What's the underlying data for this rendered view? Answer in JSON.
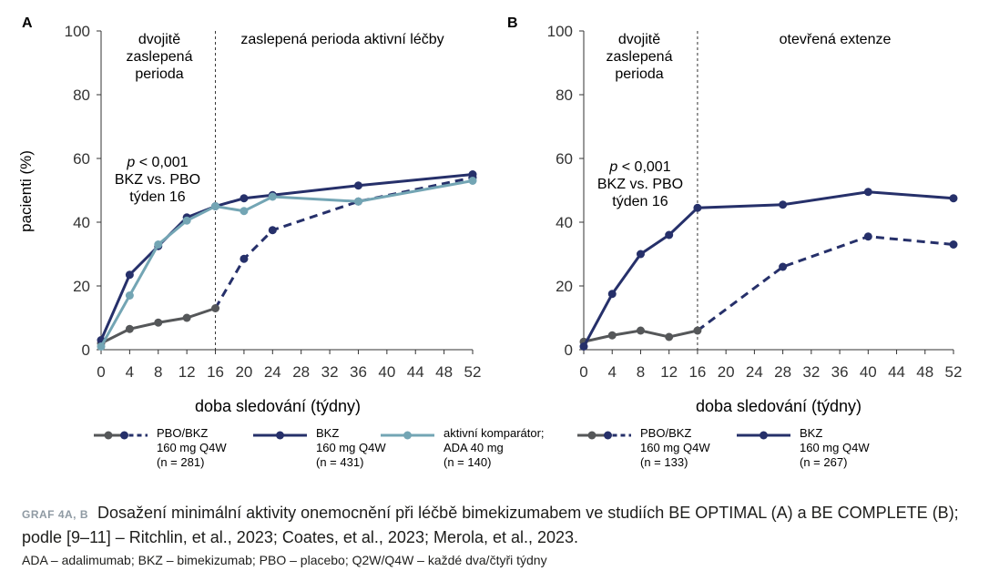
{
  "colors": {
    "bkz": "#26306a",
    "pbo": "#555759",
    "ada": "#73a5b4",
    "axis": "#333333",
    "caption_label": "#8f9aa3"
  },
  "chart_data": [
    {
      "panel": "A",
      "type": "line",
      "xlabel": "doba sledování (týdny)",
      "ylabel": "pacienti (%)",
      "xlim": [
        0,
        52
      ],
      "ylim": [
        0,
        100
      ],
      "xticks": [
        "0",
        "4",
        "8",
        "12",
        "16",
        "20",
        "24",
        "28",
        "32",
        "36",
        "40",
        "44",
        "48",
        "52"
      ],
      "yticks": [
        "0",
        "20",
        "40",
        "60",
        "80",
        "100"
      ],
      "period_divider_x": 16,
      "period_labels": [
        "dvojitě",
        "zaslepená",
        "perioda",
        "zaslepená perioda aktivní léčby"
      ],
      "annotation": {
        "p": "p",
        "pvalue": " < 0,001",
        "line2": "BKZ vs. PBO",
        "line3": "týden 16"
      },
      "series": [
        {
          "name": "PBO/BKZ",
          "color": "#555759",
          "solid": [
            [
              0,
              2
            ],
            [
              4,
              6.5
            ],
            [
              8,
              8.5
            ],
            [
              12,
              10
            ],
            [
              16,
              13
            ]
          ],
          "dashed": [
            [
              16,
              13
            ],
            [
              20,
              28.5
            ],
            [
              24,
              37.5
            ],
            [
              36,
              46.5
            ],
            [
              52,
              54
            ]
          ]
        },
        {
          "name": "BKZ",
          "color": "#26306a",
          "solid": [
            [
              0,
              3
            ],
            [
              4,
              23.5
            ],
            [
              8,
              32.5
            ],
            [
              12,
              41.5
            ],
            [
              16,
              45
            ],
            [
              20,
              47.5
            ],
            [
              24,
              48.5
            ],
            [
              36,
              51.5
            ],
            [
              52,
              55
            ]
          ],
          "dashed": []
        },
        {
          "name": "aktivní komparátor",
          "color": "#73a5b4",
          "solid": [
            [
              0,
              1
            ],
            [
              4,
              17
            ],
            [
              8,
              33
            ],
            [
              12,
              40.5
            ],
            [
              16,
              45
            ],
            [
              20,
              43.5
            ],
            [
              24,
              48
            ],
            [
              36,
              46.5
            ],
            [
              52,
              53
            ]
          ],
          "dashed": []
        }
      ],
      "legend": [
        {
          "kind": "pbo",
          "lines": [
            "PBO/BKZ",
            "160 mg Q4W",
            "(n = 281)"
          ]
        },
        {
          "kind": "bkz",
          "lines": [
            "BKZ",
            "160 mg Q4W",
            "(n = 431)"
          ]
        },
        {
          "kind": "ada",
          "lines": [
            "aktivní komparátor;",
            "ADA 40 mg",
            "(n = 140)"
          ]
        }
      ]
    },
    {
      "panel": "B",
      "type": "line",
      "xlabel": "doba sledování (týdny)",
      "ylabel": "",
      "xlim": [
        0,
        52
      ],
      "ylim": [
        0,
        100
      ],
      "xticks": [
        "0",
        "4",
        "8",
        "12",
        "16",
        "20",
        "24",
        "28",
        "32",
        "36",
        "40",
        "44",
        "48",
        "52"
      ],
      "yticks": [
        "0",
        "20",
        "40",
        "60",
        "80",
        "100"
      ],
      "period_divider_x": 16,
      "period_labels": [
        "dvojitě",
        "zaslepená",
        "perioda",
        "otevřená extenze"
      ],
      "annotation": {
        "p": "p",
        "pvalue": " < 0,001",
        "line2": "BKZ vs. PBO",
        "line3": "týden 16"
      },
      "series": [
        {
          "name": "PBO/BKZ",
          "color": "#555759",
          "solid": [
            [
              0,
              2.5
            ],
            [
              4,
              4.5
            ],
            [
              8,
              6
            ],
            [
              12,
              4
            ],
            [
              16,
              6
            ]
          ],
          "dashed": [
            [
              16,
              6
            ],
            [
              28,
              26
            ],
            [
              40,
              35.5
            ],
            [
              52,
              33
            ]
          ]
        },
        {
          "name": "BKZ",
          "color": "#26306a",
          "solid": [
            [
              0,
              1
            ],
            [
              4,
              17.5
            ],
            [
              8,
              30
            ],
            [
              12,
              36
            ],
            [
              16,
              44.5
            ],
            [
              28,
              45.5
            ],
            [
              40,
              49.5
            ],
            [
              52,
              47.5
            ]
          ],
          "dashed": []
        }
      ],
      "legend": [
        {
          "kind": "pbo",
          "lines": [
            "PBO/BKZ",
            "160 mg Q4W",
            "(n = 133)"
          ]
        },
        {
          "kind": "bkz",
          "lines": [
            "BKZ",
            "160 mg Q4W",
            "(n = 267)"
          ]
        }
      ]
    }
  ],
  "caption": {
    "label": "GRAF 4A, B",
    "text": "Dosažení minimální aktivity onemocnění při léčbě bimekizumabem ve studiích BE OPTIMAL (A) a BE COMPLETE (B); podle [9–11] – Ritchlin, et al., 2023; Coates, et al., 2023; Merola, et al., 2023.",
    "abbreviations": "ADA – adalimumab; BKZ – bimekizumab; PBO – placebo; Q2W/Q4W – každé dva/čtyři týdny"
  }
}
